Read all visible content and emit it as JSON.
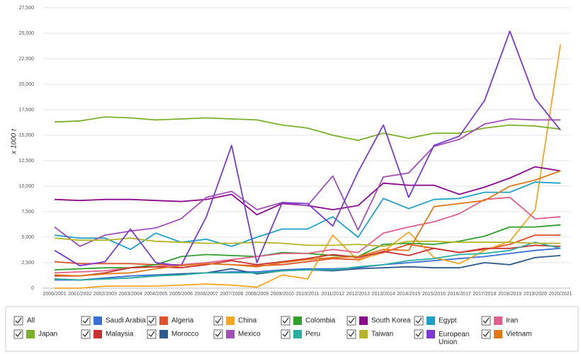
{
  "chart_data": {
    "type": "line",
    "y_label": "x 1000 t",
    "categories": [
      "2000/2001",
      "2001/2002",
      "2002/2003",
      "2003/2004",
      "2004/2005",
      "2005/2006",
      "2006/2007",
      "2007/2008",
      "2008/2009",
      "2009/2010",
      "2010/2011",
      "2011/2012",
      "2012/2013",
      "2013/2014",
      "2014/2015",
      "2015/2016",
      "2016/2017",
      "2017/2018",
      "2018/2019",
      "2019/2020",
      "2020/2021"
    ],
    "ylim": [
      0,
      27500
    ],
    "yticks": [
      0,
      {
        "value": 2500,
        "label": "2,500"
      },
      {
        "value": 5000,
        "label": "5,000"
      },
      {
        "value": 7500,
        "label": "7,500"
      },
      {
        "value": 10000,
        "label": "10,000"
      },
      {
        "value": 12500,
        "label": "12,500"
      },
      {
        "value": 15000,
        "label": "15,000"
      },
      {
        "value": 17500,
        "label": "17,500"
      },
      {
        "value": 20000,
        "label": "20,000"
      },
      {
        "value": 22500,
        "label": "22,500"
      },
      {
        "value": 25000,
        "label": "25,000"
      },
      {
        "value": 27500,
        "label": "27,500"
      }
    ],
    "grid": true,
    "legend_all": "All",
    "series": [
      {
        "name": "Saudi Arabia",
        "color": "#3a6fd8",
        "values": [
          800,
          800,
          1000,
          1200,
          1300,
          1400,
          1500,
          1600,
          1600,
          1800,
          1900,
          1900,
          2000,
          2300,
          2500,
          2700,
          2900,
          3100,
          3400,
          3700,
          3900
        ]
      },
      {
        "name": "Algeria",
        "color": "#e0502a",
        "values": [
          2600,
          2400,
          2400,
          2400,
          2300,
          2300,
          2400,
          2300,
          2200,
          2300,
          2600,
          2900,
          2800,
          3500,
          4300,
          3900,
          3500,
          3800,
          4300,
          5200,
          5200
        ]
      },
      {
        "name": "China",
        "color": "#f5a623",
        "values": [
          0,
          0,
          200,
          200,
          200,
          300,
          400,
          300,
          100,
          1300,
          900,
          5200,
          2700,
          3600,
          5500,
          3000,
          2400,
          3700,
          4600,
          7700,
          23900
        ]
      },
      {
        "name": "Colombia",
        "color": "#2ea02c",
        "values": [
          1800,
          1900,
          2000,
          2000,
          2300,
          3100,
          3300,
          3200,
          3100,
          3500,
          3400,
          3200,
          3100,
          4300,
          4400,
          4300,
          4600,
          5100,
          6000,
          6000,
          6200
        ]
      },
      {
        "name": "South Korea",
        "color": "#8b0a8b",
        "values": [
          8700,
          8600,
          8700,
          8700,
          8600,
          8500,
          8700,
          9200,
          7200,
          8300,
          8100,
          7700,
          8100,
          10300,
          10100,
          10100,
          9200,
          9900,
          10800,
          11900,
          11500
        ]
      },
      {
        "name": "Egypt",
        "color": "#1ea0c8",
        "values": [
          5200,
          4900,
          4900,
          3800,
          5400,
          4500,
          4800,
          4100,
          5000,
          5800,
          5800,
          7000,
          5000,
          8800,
          7800,
          8700,
          8800,
          9400,
          9400,
          10400,
          10300
        ]
      },
      {
        "name": "Iran",
        "color": "#e0608a",
        "values": [
          1500,
          1600,
          1700,
          2000,
          2100,
          2300,
          2500,
          2800,
          3100,
          3400,
          3400,
          3800,
          3500,
          5400,
          6000,
          6500,
          7300,
          8700,
          8900,
          6800,
          7000
        ]
      },
      {
        "name": "Japan",
        "color": "#7ab02a",
        "values": [
          16300,
          16400,
          16800,
          16700,
          16500,
          16600,
          16700,
          16600,
          16500,
          16000,
          15700,
          15000,
          14500,
          15200,
          14700,
          15200,
          15200,
          15700,
          16000,
          15900,
          15600
        ]
      },
      {
        "name": "Malaysia",
        "color": "#c83232",
        "values": [
          1200,
          1200,
          1500,
          2000,
          2100,
          2000,
          2300,
          2700,
          2300,
          2600,
          2900,
          3300,
          3000,
          3600,
          3200,
          3900,
          3500,
          3900,
          3900,
          4200,
          4100
        ]
      },
      {
        "name": "Morocco",
        "color": "#2c5a8c",
        "values": [
          900,
          800,
          900,
          1000,
          1200,
          1400,
          1500,
          1900,
          1400,
          1700,
          1800,
          1700,
          1900,
          2000,
          2100,
          2000,
          2000,
          2500,
          2300,
          3000,
          3200
        ]
      },
      {
        "name": "Mexico",
        "color": "#a050b4",
        "values": [
          6000,
          4100,
          5200,
          5600,
          5900,
          6800,
          8900,
          9500,
          7700,
          8400,
          8100,
          11000,
          5700,
          10900,
          11300,
          13900,
          14600,
          16100,
          16600,
          16500,
          16500
        ]
      },
      {
        "name": "Peru",
        "color": "#2ab0a0",
        "values": [
          900,
          800,
          900,
          1000,
          1200,
          1300,
          1500,
          1500,
          1500,
          1700,
          1800,
          1800,
          2100,
          2300,
          2700,
          2900,
          3300,
          3400,
          3700,
          4500,
          3900
        ]
      },
      {
        "name": "Taiwan",
        "color": "#b4b428",
        "values": [
          4900,
          4700,
          4700,
          4900,
          4600,
          4500,
          4400,
          4400,
          4500,
          4400,
          4200,
          4200,
          4300,
          4100,
          4600,
          4600,
          4500,
          4500,
          4500,
          4400,
          4400
        ]
      },
      {
        "name": "European Union",
        "color": "#7a3ad0",
        "values": [
          3700,
          2200,
          2600,
          5800,
          2500,
          2200,
          7000,
          14000,
          2500,
          8400,
          8300,
          6100,
          11400,
          16000,
          8900,
          14000,
          14900,
          18400,
          25200,
          18600,
          15500
        ]
      },
      {
        "name": "Vietnam",
        "color": "#e07818",
        "values": [
          1300,
          1200,
          1400,
          1500,
          1900,
          2200,
          2400,
          2300,
          2100,
          2500,
          2800,
          3000,
          3100,
          3800,
          3700,
          8000,
          8300,
          8600,
          10000,
          10600,
          11500
        ]
      }
    ]
  }
}
